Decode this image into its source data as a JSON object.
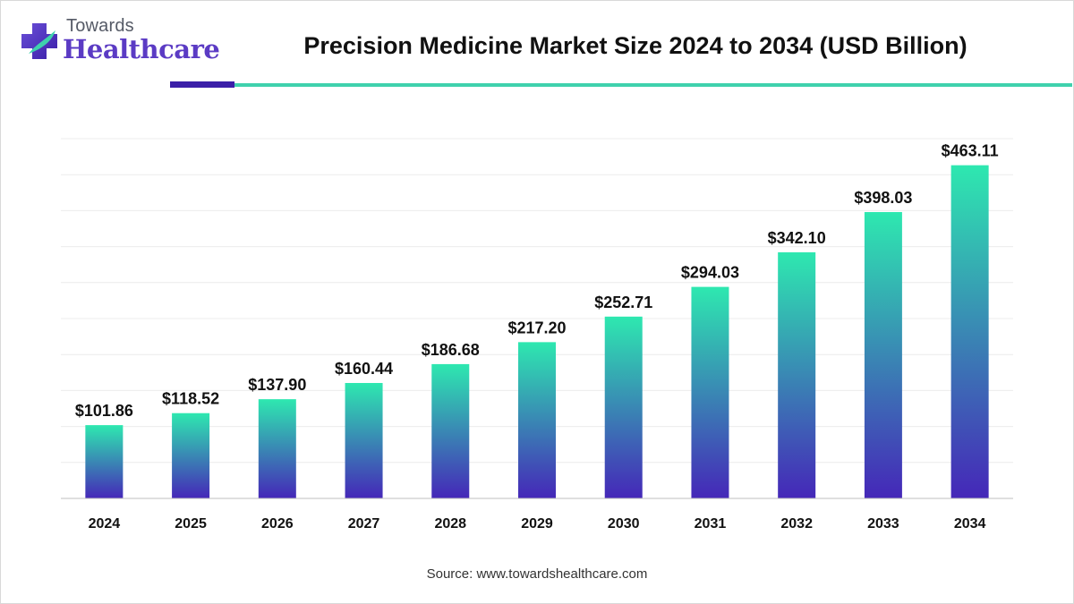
{
  "brand": {
    "top": "Towards",
    "main": "Healthcare"
  },
  "source": "Source: www.towardshealthcare.com",
  "colors": {
    "bar_top": "#2ee8b0",
    "bar_bottom": "#4527b8",
    "accent_purple": "#3b1fa8",
    "accent_teal": "#3fd1ad"
  },
  "chart_data": {
    "type": "bar",
    "title": "Precision Medicine Market Size 2024 to 2034 (USD Billion)",
    "categories": [
      "2024",
      "2025",
      "2026",
      "2027",
      "2028",
      "2029",
      "2030",
      "2031",
      "2032",
      "2033",
      "2034"
    ],
    "values": [
      101.86,
      118.52,
      137.9,
      160.44,
      186.68,
      217.2,
      252.71,
      294.03,
      342.1,
      398.03,
      463.11
    ],
    "data_labels": [
      "$101.86",
      "$118.52",
      "$137.90",
      "$160.44",
      "$186.68",
      "$217.20",
      "$252.71",
      "$294.03",
      "$342.10",
      "$398.03",
      "$463.11"
    ],
    "ylim": [
      0,
      500
    ],
    "grid": true,
    "legend": "none"
  }
}
